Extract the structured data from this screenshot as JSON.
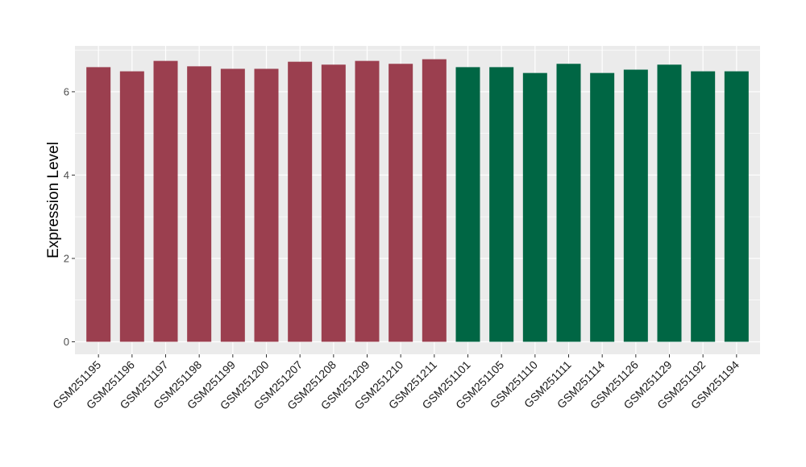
{
  "chart_data": {
    "type": "bar",
    "title": "",
    "xlabel": "",
    "ylabel": "Expression Level",
    "ylim": [
      -0.3,
      7.1
    ],
    "yticks": [
      0,
      2,
      4,
      6
    ],
    "grid": true,
    "categories": [
      "GSM251195",
      "GSM251196",
      "GSM251197",
      "GSM251198",
      "GSM251199",
      "GSM251200",
      "GSM251207",
      "GSM251208",
      "GSM251209",
      "GSM251210",
      "GSM251211",
      "GSM251101",
      "GSM251105",
      "GSM251110",
      "GSM251111",
      "GSM251114",
      "GSM251126",
      "GSM251129",
      "GSM251192",
      "GSM251194"
    ],
    "values": [
      6.59,
      6.49,
      6.74,
      6.61,
      6.55,
      6.55,
      6.72,
      6.65,
      6.74,
      6.67,
      6.78,
      6.59,
      6.59,
      6.45,
      6.67,
      6.45,
      6.53,
      6.65,
      6.49,
      6.49
    ],
    "groups": [
      0,
      0,
      0,
      0,
      0,
      0,
      0,
      0,
      0,
      0,
      0,
      1,
      1,
      1,
      1,
      1,
      1,
      1,
      1,
      1
    ],
    "group_colors": [
      "#9b3f4f",
      "#006644"
    ],
    "panel_background": "#ebebeb",
    "grid_color": "#ffffff"
  }
}
